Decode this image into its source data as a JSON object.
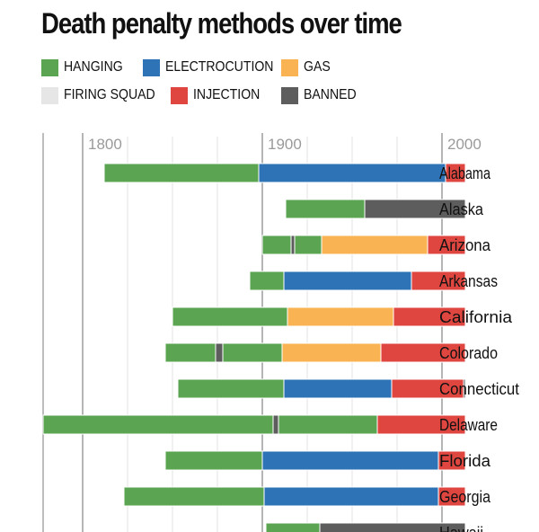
{
  "title": "Death penalty methods over time",
  "legend": [
    {
      "key": "hanging",
      "label": "HANGING",
      "color": "#5aa452"
    },
    {
      "key": "electrocution",
      "label": "ELECTROCUTION",
      "color": "#2f73b7"
    },
    {
      "key": "gas",
      "label": "GAS",
      "color": "#fab352"
    },
    {
      "key": "firing_squad",
      "label": "FIRING SQUAD",
      "color": "#e6e6e6"
    },
    {
      "key": "injection",
      "label": "INJECTION",
      "color": "#e04640"
    },
    {
      "key": "banned",
      "label": "BANNED",
      "color": "#5d5d5d"
    }
  ],
  "chart_data": {
    "type": "bar",
    "orientation": "horizontal",
    "subtype": "stacked-timeline",
    "title": "Death penalty methods over time",
    "x_ticks": [
      "1800",
      "1900",
      "2000"
    ],
    "xlim": [
      1778,
      2013
    ],
    "grid": true,
    "legend_position": "top",
    "categories": [
      "Alabama",
      "Alaska",
      "Arizona",
      "Arkansas",
      "California",
      "Colorado",
      "Connecticut",
      "Delaware",
      "Florida",
      "Georgia",
      "Hawaii"
    ],
    "rows": [
      {
        "state": "Alabama",
        "segments": [
          {
            "method": "hanging",
            "start": 1812,
            "end": 1898
          },
          {
            "method": "electrocution",
            "start": 1898,
            "end": 2002
          },
          {
            "method": "injection",
            "start": 2002,
            "end": 2013
          }
        ]
      },
      {
        "state": "Alaska",
        "segments": [
          {
            "method": "hanging",
            "start": 1913,
            "end": 1957
          },
          {
            "method": "banned",
            "start": 1957,
            "end": 2013
          }
        ]
      },
      {
        "state": "Arizona",
        "segments": [
          {
            "method": "hanging",
            "start": 1900,
            "end": 1916
          },
          {
            "method": "banned",
            "start": 1916,
            "end": 1918
          },
          {
            "method": "hanging",
            "start": 1918,
            "end": 1933
          },
          {
            "method": "gas",
            "start": 1933,
            "end": 1992
          },
          {
            "method": "injection",
            "start": 1992,
            "end": 2013
          }
        ]
      },
      {
        "state": "Arkansas",
        "segments": [
          {
            "method": "hanging",
            "start": 1893,
            "end": 1912
          },
          {
            "method": "electrocution",
            "start": 1912,
            "end": 1983
          },
          {
            "method": "injection",
            "start": 1983,
            "end": 2013
          }
        ]
      },
      {
        "state": "California",
        "segments": [
          {
            "method": "hanging",
            "start": 1850,
            "end": 1914
          },
          {
            "method": "gas",
            "start": 1914,
            "end": 1973
          },
          {
            "method": "injection",
            "start": 1973,
            "end": 2013
          }
        ]
      },
      {
        "state": "Colorado",
        "segments": [
          {
            "method": "hanging",
            "start": 1846,
            "end": 1874
          },
          {
            "method": "banned",
            "start": 1874,
            "end": 1878
          },
          {
            "method": "hanging",
            "start": 1878,
            "end": 1911
          },
          {
            "method": "gas",
            "start": 1911,
            "end": 1966
          },
          {
            "method": "injection",
            "start": 1966,
            "end": 2013
          }
        ]
      },
      {
        "state": "Connecticut",
        "segments": [
          {
            "method": "hanging",
            "start": 1853,
            "end": 1912
          },
          {
            "method": "electrocution",
            "start": 1912,
            "end": 1972
          },
          {
            "method": "injection",
            "start": 1972,
            "end": 2012
          },
          {
            "method": "banned",
            "start": 2012,
            "end": 2013
          }
        ]
      },
      {
        "state": "Delaware",
        "segments": [
          {
            "method": "hanging",
            "start": 1778,
            "end": 1906
          },
          {
            "method": "banned",
            "start": 1906,
            "end": 1909
          },
          {
            "method": "hanging",
            "start": 1909,
            "end": 1964
          },
          {
            "method": "injection",
            "start": 1964,
            "end": 2013
          }
        ]
      },
      {
        "state": "Florida",
        "segments": [
          {
            "method": "hanging",
            "start": 1846,
            "end": 1900
          },
          {
            "method": "electrocution",
            "start": 1900,
            "end": 1998
          },
          {
            "method": "injection",
            "start": 1998,
            "end": 2013
          }
        ]
      },
      {
        "state": "Georgia",
        "segments": [
          {
            "method": "hanging",
            "start": 1823,
            "end": 1901
          },
          {
            "method": "electrocution",
            "start": 1901,
            "end": 1998
          },
          {
            "method": "injection",
            "start": 1998,
            "end": 2013
          }
        ]
      },
      {
        "state": "Hawaii",
        "segments": [
          {
            "method": "hanging",
            "start": 1902,
            "end": 1932
          },
          {
            "method": "banned",
            "start": 1932,
            "end": 2013
          }
        ]
      }
    ]
  }
}
